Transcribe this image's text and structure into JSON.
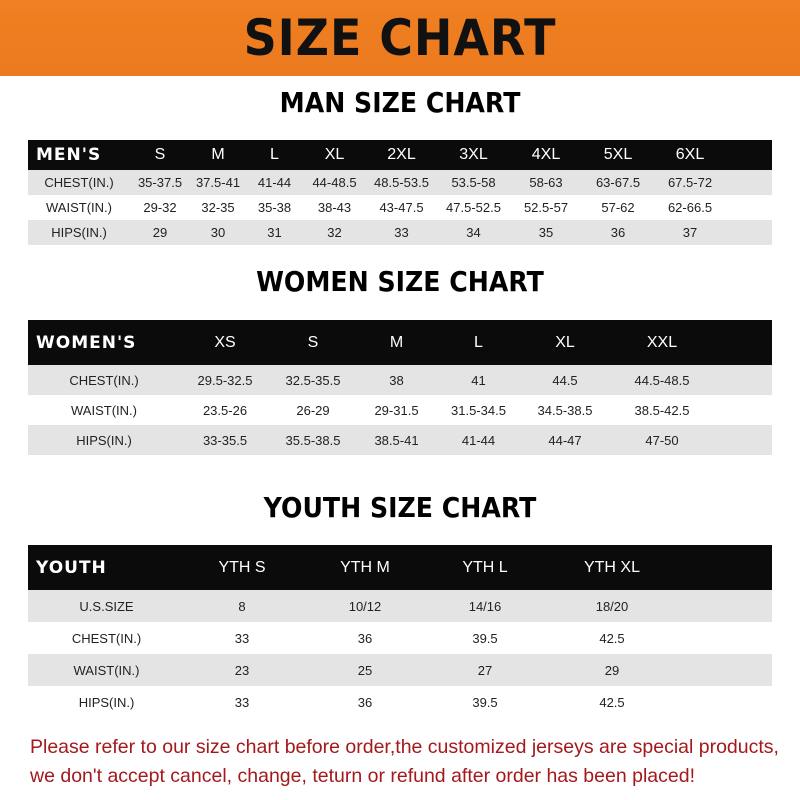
{
  "title": "SIZE CHART",
  "colors": {
    "banner": "#ee7c20",
    "header_row": "#0b0b0b",
    "note": "#a3191c"
  },
  "men": {
    "title": "MAN SIZE CHART",
    "headers": [
      "MEN'S",
      "S",
      "M",
      "L",
      "XL",
      "2XL",
      "3XL",
      "4XL",
      "5XL",
      "6XL"
    ],
    "rows": [
      [
        "CHEST(IN.)",
        "35-37.5",
        "37.5-41",
        "41-44",
        "44-48.5",
        "48.5-53.5",
        "53.5-58",
        "58-63",
        "63-67.5",
        "67.5-72"
      ],
      [
        "WAIST(IN.)",
        "29-32",
        "32-35",
        "35-38",
        "38-43",
        "43-47.5",
        "47.5-52.5",
        "52.5-57",
        "57-62",
        "62-66.5"
      ],
      [
        "HIPS(IN.)",
        "29",
        "30",
        "31",
        "32",
        "33",
        "34",
        "35",
        "36",
        "37"
      ]
    ]
  },
  "women": {
    "title": "WOMEN SIZE CHART",
    "headers": [
      "WOMEN'S",
      "XS",
      "S",
      "M",
      "L",
      "XL",
      "XXL"
    ],
    "rows": [
      [
        "CHEST(IN.)",
        "29.5-32.5",
        "32.5-35.5",
        "38",
        "41",
        "44.5",
        "44.5-48.5"
      ],
      [
        "WAIST(IN.)",
        "23.5-26",
        "26-29",
        "29-31.5",
        "31.5-34.5",
        "34.5-38.5",
        "38.5-42.5"
      ],
      [
        "HIPS(IN.)",
        "33-35.5",
        "35.5-38.5",
        "38.5-41",
        "41-44",
        "44-47",
        "47-50"
      ]
    ]
  },
  "youth": {
    "title": "YOUTH SIZE CHART",
    "headers": [
      "YOUTH",
      "YTH S",
      "YTH M",
      "YTH L",
      "YTH XL"
    ],
    "rows": [
      [
        "U.S.SIZE",
        "8",
        "10/12",
        "14/16",
        "18/20"
      ],
      [
        "CHEST(IN.)",
        "33",
        "36",
        "39.5",
        "42.5"
      ],
      [
        "WAIST(IN.)",
        "23",
        "25",
        "27",
        "29"
      ],
      [
        "HIPS(IN.)",
        "33",
        "36",
        "39.5",
        "42.5"
      ]
    ]
  },
  "note": {
    "line1": "Please refer to our size chart before order,the customized jerseys are special products,",
    "line2": "we don't accept cancel, change, teturn or refund after order has been placed!"
  }
}
